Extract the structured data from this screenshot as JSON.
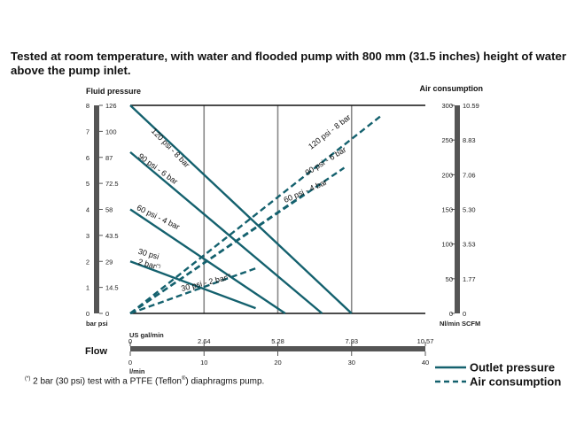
{
  "title": "Tested at room temperature, with water and flooded pump with 800 mm  (31.5 inches) height of water above the pump inlet.",
  "note": {
    "mark": "(*)",
    "text_before": " 2 bar (30 psi) test with a PTFE (Teflon",
    "reg": "®",
    "text_after": ") diaphragms pump."
  },
  "colors": {
    "line": "#14616e",
    "grid": "#888888",
    "axis_bar": "#555555"
  },
  "chart_data": {
    "type": "line",
    "title": "",
    "left_axis": {
      "title": "Fluid pressure",
      "units_label": "bar psi",
      "range_bar": [
        0,
        8
      ],
      "bar_ticks": [
        "0",
        "1",
        "2",
        "3",
        "4",
        "5",
        "6",
        "7",
        "8"
      ],
      "psi_ticks": [
        "0",
        "14.5",
        "29",
        "43.5",
        "58",
        "72.5",
        "87",
        "100",
        "126"
      ]
    },
    "right_axis": {
      "title": "Air consumption",
      "units_label": "Nl/min SCFM",
      "range_nlmin": [
        0,
        300
      ],
      "nlmin_ticks": [
        "0",
        "50",
        "100",
        "150",
        "200",
        "250",
        "300"
      ],
      "scfm_ticks": [
        "0",
        "1.77",
        "3.53",
        "5.30",
        "7.06",
        "8.83",
        "10.59"
      ]
    },
    "x_axis": {
      "title": "Flow",
      "range_lmin": [
        0,
        40
      ],
      "usgal_label": "US gal/min",
      "usgal_ticks": [
        "0",
        "2.64",
        "5.28",
        "7.93",
        "10.57"
      ],
      "lmin_label": "l/min",
      "lmin_ticks": [
        "0",
        "10",
        "20",
        "30",
        "40"
      ]
    },
    "series": [
      {
        "name": "120 psi - 8 bar",
        "kind": "outlet",
        "x": [
          0,
          30
        ],
        "y": [
          8,
          0
        ]
      },
      {
        "name": "90 psi - 6 bar",
        "kind": "outlet",
        "x": [
          0,
          26
        ],
        "y": [
          6.2,
          0
        ]
      },
      {
        "name": "60 psi - 4 bar",
        "kind": "outlet",
        "x": [
          0,
          21
        ],
        "y": [
          4,
          0
        ]
      },
      {
        "name": "30 psi - 2 bar (*)",
        "kind": "outlet",
        "x": [
          0,
          17
        ],
        "y": [
          2,
          0.2
        ]
      },
      {
        "name": "120 psi - 8 bar",
        "kind": "air",
        "x": [
          0,
          34
        ],
        "y": [
          0,
          285
        ]
      },
      {
        "name": "90 psi - 6 bar",
        "kind": "air",
        "x": [
          0,
          29
        ],
        "y": [
          0,
          210
        ]
      },
      {
        "name": "60 psi - 4 bar",
        "kind": "air",
        "x": [
          0,
          24
        ],
        "y": [
          0,
          175
        ]
      },
      {
        "name": "30 psi - 2 bar (*)",
        "kind": "air",
        "x": [
          0,
          17
        ],
        "y": [
          0,
          65
        ]
      }
    ],
    "curve_labels": [
      {
        "text": "120 psi - 8 bar",
        "x": 2.8,
        "y": 7.0,
        "angle": 46
      },
      {
        "text": "90 psi - 6 bar",
        "x": 1.0,
        "y": 6.0,
        "angle": 36
      },
      {
        "text": "60 psi - 4 bar",
        "x": 0.8,
        "y": 4.0,
        "angle": 26
      },
      {
        "text": "30 psi",
        "x": 1.0,
        "y": 2.3,
        "angle": 16
      },
      {
        "text": "2 bar",
        "x": 1.0,
        "y": 1.9,
        "angle": 16,
        "mark": "(*)"
      },
      {
        "text": "120 psi - 8 bar",
        "x": 24.5,
        "y": 6.3,
        "angle": -38
      },
      {
        "text": "90 psi - 6 bar",
        "x": 24.0,
        "y": 5.3,
        "angle": -32
      },
      {
        "text": "60 psi - 4 bar",
        "x": 21.0,
        "y": 4.25,
        "angle": -24
      },
      {
        "text": "30 psi - 2 bar",
        "x": 7.0,
        "y": 0.85,
        "angle": -14,
        "mark": "(*)"
      }
    ],
    "legend": [
      {
        "label": "Outlet pressure",
        "style": "solid"
      },
      {
        "label": "Air consumption",
        "style": "dashed"
      }
    ],
    "legend_position": "bottom-right"
  }
}
